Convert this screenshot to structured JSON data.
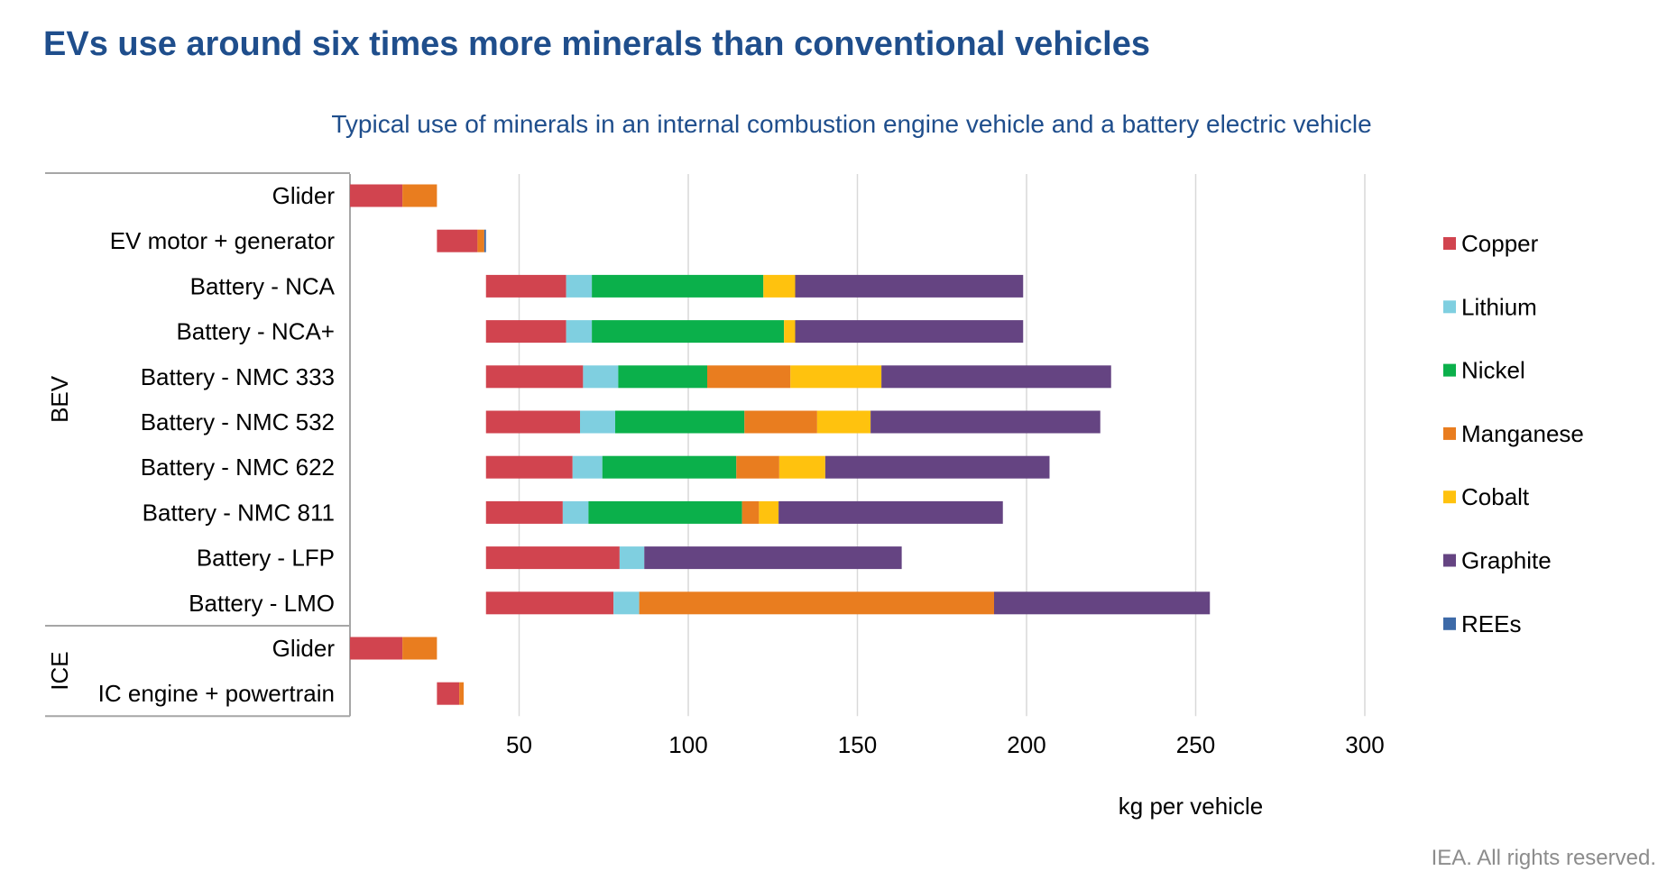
{
  "title": "EVs use around six times more minerals than conventional vehicles",
  "credit": "IEA. All rights reserved.",
  "colors": {
    "Copper": "#d1444f",
    "Lithium": "#7fcfe0",
    "Nickel": "#0bb04b",
    "Manganese": "#e97d1f",
    "Cobalt": "#ffc20e",
    "Graphite": "#654482",
    "REEs": "#3d6aa8"
  },
  "chart_data": {
    "type": "bar",
    "orientation": "horizontal",
    "layout": "waterfall",
    "title": "Typical use of minerals in an internal combustion engine vehicle and a battery electric vehicle",
    "xlabel": "kg per vehicle",
    "ylabel": "",
    "xlim": [
      0,
      330
    ],
    "xticks": [
      50,
      100,
      150,
      200,
      250,
      300
    ],
    "grid": true,
    "legend_position": "right",
    "legend": [
      "Copper",
      "Lithium",
      "Nickel",
      "Manganese",
      "Cobalt",
      "Graphite",
      "REEs"
    ],
    "groups": [
      {
        "name": "BEV",
        "categories": [
          "Glider",
          "EV motor + generator",
          "Battery - NCA",
          "Battery - NCA+",
          "Battery - NMC 333",
          "Battery - NMC 532",
          "Battery - NMC 622",
          "Battery - NMC 811",
          "Battery - LFP",
          "Battery - LMO"
        ]
      },
      {
        "name": "ICE",
        "categories": [
          "Glider",
          "IC engine + powertrain"
        ]
      }
    ],
    "bars": [
      {
        "group": "BEV",
        "label": "Glider",
        "start": 0,
        "segments": [
          {
            "mineral": "Copper",
            "value": 15.5
          },
          {
            "mineral": "Manganese",
            "value": 10.2
          }
        ]
      },
      {
        "group": "BEV",
        "label": "EV motor + generator",
        "start": 25.7,
        "segments": [
          {
            "mineral": "Copper",
            "value": 12
          },
          {
            "mineral": "Manganese",
            "value": 2
          },
          {
            "mineral": "REEs",
            "value": 0.5
          }
        ]
      },
      {
        "group": "BEV",
        "label": "Battery - NCA",
        "start": 40.2,
        "segments": [
          {
            "mineral": "Copper",
            "value": 23.7
          },
          {
            "mineral": "Lithium",
            "value": 7.6
          },
          {
            "mineral": "Nickel",
            "value": 50.7
          },
          {
            "mineral": "Cobalt",
            "value": 9.4
          },
          {
            "mineral": "Graphite",
            "value": 67.4
          }
        ]
      },
      {
        "group": "BEV",
        "label": "Battery - NCA+",
        "start": 40.2,
        "segments": [
          {
            "mineral": "Copper",
            "value": 23.7
          },
          {
            "mineral": "Lithium",
            "value": 7.6
          },
          {
            "mineral": "Nickel",
            "value": 56.8
          },
          {
            "mineral": "Cobalt",
            "value": 3.3
          },
          {
            "mineral": "Graphite",
            "value": 67.4
          }
        ]
      },
      {
        "group": "BEV",
        "label": "Battery - NMC 333",
        "start": 40.2,
        "segments": [
          {
            "mineral": "Copper",
            "value": 28.7
          },
          {
            "mineral": "Lithium",
            "value": 10.4
          },
          {
            "mineral": "Nickel",
            "value": 26.3
          },
          {
            "mineral": "Manganese",
            "value": 24.6
          },
          {
            "mineral": "Cobalt",
            "value": 26.9
          },
          {
            "mineral": "Graphite",
            "value": 67.9
          }
        ]
      },
      {
        "group": "BEV",
        "label": "Battery - NMC 532",
        "start": 40.2,
        "segments": [
          {
            "mineral": "Copper",
            "value": 27.8
          },
          {
            "mineral": "Lithium",
            "value": 10.4
          },
          {
            "mineral": "Nickel",
            "value": 38.2
          },
          {
            "mineral": "Manganese",
            "value": 21.5
          },
          {
            "mineral": "Cobalt",
            "value": 15.8
          },
          {
            "mineral": "Graphite",
            "value": 67.9
          }
        ]
      },
      {
        "group": "BEV",
        "label": "Battery - NMC 622",
        "start": 40.2,
        "segments": [
          {
            "mineral": "Copper",
            "value": 25.6
          },
          {
            "mineral": "Lithium",
            "value": 8.8
          },
          {
            "mineral": "Nickel",
            "value": 39.6
          },
          {
            "mineral": "Manganese",
            "value": 12.7
          },
          {
            "mineral": "Cobalt",
            "value": 13.6
          },
          {
            "mineral": "Graphite",
            "value": 66.3
          }
        ]
      },
      {
        "group": "BEV",
        "label": "Battery - NMC 811",
        "start": 40.2,
        "segments": [
          {
            "mineral": "Copper",
            "value": 22.7
          },
          {
            "mineral": "Lithium",
            "value": 7.6
          },
          {
            "mineral": "Nickel",
            "value": 45.4
          },
          {
            "mineral": "Manganese",
            "value": 5.0
          },
          {
            "mineral": "Cobalt",
            "value": 5.8
          },
          {
            "mineral": "Graphite",
            "value": 66.3
          }
        ]
      },
      {
        "group": "BEV",
        "label": "Battery - LFP",
        "start": 40.2,
        "segments": [
          {
            "mineral": "Copper",
            "value": 39.5
          },
          {
            "mineral": "Lithium",
            "value": 7.3
          },
          {
            "mineral": "Graphite",
            "value": 76.1
          }
        ]
      },
      {
        "group": "BEV",
        "label": "Battery - LMO",
        "start": 40.2,
        "segments": [
          {
            "mineral": "Copper",
            "value": 37.7
          },
          {
            "mineral": "Lithium",
            "value": 7.6
          },
          {
            "mineral": "Manganese",
            "value": 104.9
          },
          {
            "mineral": "Graphite",
            "value": 63.8
          }
        ]
      },
      {
        "group": "ICE",
        "label": "Glider",
        "start": 0,
        "segments": [
          {
            "mineral": "Copper",
            "value": 15.5
          },
          {
            "mineral": "Manganese",
            "value": 10.2
          }
        ]
      },
      {
        "group": "ICE",
        "label": "IC engine + powertrain",
        "start": 25.7,
        "segments": [
          {
            "mineral": "Copper",
            "value": 6.6
          },
          {
            "mineral": "Manganese",
            "value": 1.3
          }
        ]
      }
    ]
  }
}
